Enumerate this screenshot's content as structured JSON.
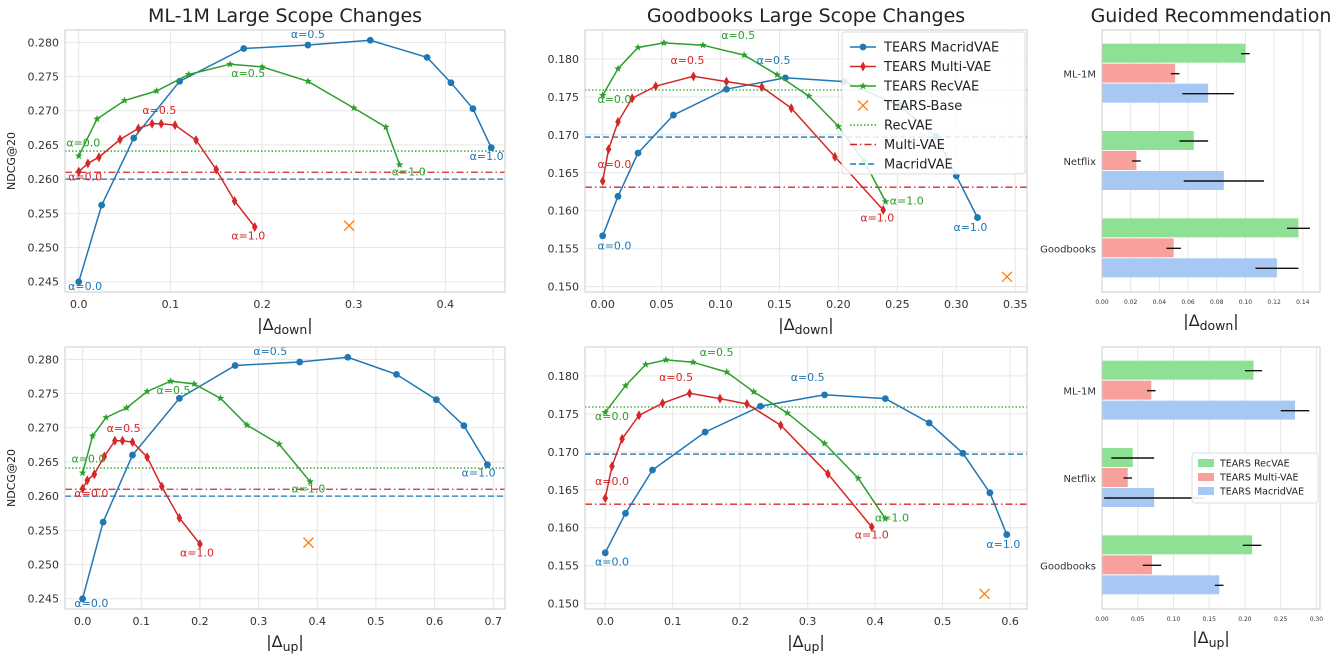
{
  "chart_data": [
    {
      "id": "ml1m_down",
      "type": "line",
      "title": "ML-1M Large Scope Changes",
      "xlabel": "|Δdown|",
      "ylabel": "NDCG@20",
      "xlim": [
        -0.015,
        0.465
      ],
      "ylim": [
        0.2435,
        0.2818
      ],
      "xticks": [
        "0.0",
        "0.1",
        "0.2",
        "0.3",
        "0.4"
      ],
      "yticks": [
        "0.245",
        "0.250",
        "0.255",
        "0.260",
        "0.265",
        "0.270",
        "0.275",
        "0.280"
      ],
      "grid": true,
      "series": [
        {
          "name": "TEARS MacridVAE",
          "color": "#1f77b4",
          "marker": "circle",
          "x": [
            0.0,
            0.025,
            0.06,
            0.11,
            0.18,
            0.25,
            0.318,
            0.38,
            0.406,
            0.43,
            0.45
          ],
          "y": [
            0.245,
            0.2562,
            0.266,
            0.2743,
            0.2791,
            0.2796,
            0.2803,
            0.2778,
            0.2741,
            0.2703,
            0.2646
          ]
        },
        {
          "name": "TEARS Multi-VAE",
          "color": "#d62728",
          "marker": "diamond",
          "x": [
            0.0,
            0.01,
            0.022,
            0.045,
            0.065,
            0.08,
            0.09,
            0.105,
            0.128,
            0.15,
            0.17,
            0.192
          ],
          "y": [
            0.2611,
            0.2623,
            0.2632,
            0.2658,
            0.2674,
            0.2681,
            0.2681,
            0.2679,
            0.2657,
            0.2614,
            0.2568,
            0.253
          ]
        },
        {
          "name": "TEARS RecVAE",
          "color": "#2ca02c",
          "marker": "star",
          "x": [
            0.0,
            0.02,
            0.05,
            0.085,
            0.12,
            0.165,
            0.2,
            0.25,
            0.3,
            0.335,
            0.35
          ],
          "y": [
            0.2634,
            0.2688,
            0.2715,
            0.2729,
            0.2753,
            0.2768,
            0.2764,
            0.2743,
            0.2704,
            0.2676,
            0.2621
          ]
        },
        {
          "name": "TEARS-Base",
          "color": "#ff7f0e",
          "marker": "x",
          "x": [
            0.295
          ],
          "y": [
            0.2532
          ]
        }
      ],
      "hlines": [
        {
          "name": "RecVAE",
          "y": 0.2641,
          "color": "#2ca02c",
          "style": "dotted"
        },
        {
          "name": "Multi-VAE",
          "y": 0.261,
          "color": "#d62728",
          "style": "dashdot"
        },
        {
          "name": "MacridVAE",
          "y": 0.26,
          "color": "#1f77b4",
          "style": "dashed"
        }
      ],
      "annotations": [
        {
          "text": "α=0.5",
          "x": 0.25,
          "y": 0.2806,
          "color": "#1f77b4"
        },
        {
          "text": "α=1.0",
          "x": 0.445,
          "y": 0.2628,
          "color": "#1f77b4"
        },
        {
          "text": "α=0.0",
          "x": 0.007,
          "y": 0.2438,
          "color": "#1f77b4"
        },
        {
          "text": "α=0.5",
          "x": 0.088,
          "y": 0.2695,
          "color": "#d62728"
        },
        {
          "text": "α=0.0",
          "x": 0.007,
          "y": 0.2598,
          "color": "#d62728"
        },
        {
          "text": "α=1.0",
          "x": 0.185,
          "y": 0.2512,
          "color": "#d62728"
        },
        {
          "text": "α=0.0",
          "x": 0.005,
          "y": 0.2648,
          "color": "#2ca02c"
        },
        {
          "text": "α=0.5",
          "x": 0.185,
          "y": 0.2749,
          "color": "#2ca02c"
        },
        {
          "text": "α=1.0",
          "x": 0.36,
          "y": 0.2605,
          "color": "#2ca02c"
        }
      ]
    },
    {
      "id": "goodbooks_down",
      "type": "line",
      "title": "Goodbooks Large Scope Changes",
      "xlabel": "|Δdown|",
      "ylabel": "",
      "xlim": [
        -0.015,
        0.36
      ],
      "ylim": [
        0.1493,
        0.1838
      ],
      "xticks": [
        "0.00",
        "0.05",
        "0.10",
        "0.15",
        "0.20",
        "0.25",
        "0.30",
        "0.35"
      ],
      "yticks": [
        "0.150",
        "0.155",
        "0.160",
        "0.165",
        "0.170",
        "0.175",
        "0.180"
      ],
      "grid": true,
      "series": [
        {
          "name": "TEARS MacridVAE",
          "color": "#1f77b4",
          "marker": "circle",
          "x": [
            0.0,
            0.013,
            0.03,
            0.06,
            0.105,
            0.155,
            0.205,
            0.252,
            0.283,
            0.3,
            0.318
          ],
          "y": [
            0.1567,
            0.1619,
            0.1676,
            0.1726,
            0.176,
            0.1775,
            0.177,
            0.1738,
            0.1698,
            0.1646,
            0.1591
          ]
        },
        {
          "name": "TEARS Multi-VAE",
          "color": "#d62728",
          "marker": "diamond",
          "x": [
            0.0,
            0.005,
            0.013,
            0.025,
            0.045,
            0.077,
            0.105,
            0.135,
            0.16,
            0.197,
            0.238
          ],
          "y": [
            0.1639,
            0.1681,
            0.1717,
            0.1748,
            0.1764,
            0.1777,
            0.177,
            0.1763,
            0.1735,
            0.1671,
            0.1601
          ]
        },
        {
          "name": "TEARS RecVAE",
          "color": "#2ca02c",
          "marker": "star",
          "x": [
            0.0,
            0.013,
            0.03,
            0.052,
            0.085,
            0.12,
            0.148,
            0.175,
            0.2,
            0.222,
            0.24
          ],
          "y": [
            0.1752,
            0.1787,
            0.1815,
            0.1821,
            0.1818,
            0.1805,
            0.1779,
            0.1751,
            0.1711,
            0.1665,
            0.1612
          ]
        },
        {
          "name": "TEARS-Base",
          "color": "#ff7f0e",
          "marker": "x",
          "x": [
            0.343
          ],
          "y": [
            0.1513
          ]
        }
      ],
      "hlines": [
        {
          "name": "RecVAE",
          "y": 0.1759,
          "color": "#2ca02c",
          "style": "dotted"
        },
        {
          "name": "Multi-VAE",
          "y": 0.1631,
          "color": "#d62728",
          "style": "dashdot"
        },
        {
          "name": "MacridVAE",
          "y": 0.1697,
          "color": "#1f77b4",
          "style": "dashed"
        }
      ],
      "annotations": [
        {
          "text": "α=0.5",
          "x": 0.145,
          "y": 0.1793,
          "color": "#1f77b4"
        },
        {
          "text": "α=1.0",
          "x": 0.312,
          "y": 0.1573,
          "color": "#1f77b4"
        },
        {
          "text": "α=0.0",
          "x": 0.01,
          "y": 0.1549,
          "color": "#1f77b4"
        },
        {
          "text": "α=0.5",
          "x": 0.072,
          "y": 0.1793,
          "color": "#d62728"
        },
        {
          "text": "α=0.0",
          "x": 0.01,
          "y": 0.1656,
          "color": "#d62728"
        },
        {
          "text": "α=1.0",
          "x": 0.233,
          "y": 0.1586,
          "color": "#d62728"
        },
        {
          "text": "α=0.0",
          "x": 0.01,
          "y": 0.1742,
          "color": "#2ca02c"
        },
        {
          "text": "α=0.5",
          "x": 0.115,
          "y": 0.1826,
          "color": "#2ca02c"
        },
        {
          "text": "α=1.0",
          "x": 0.258,
          "y": 0.1608,
          "color": "#2ca02c"
        }
      ],
      "legend": {
        "placement": "top-right",
        "entries": [
          "TEARS MacridVAE",
          "TEARS Multi-VAE",
          "TEARS RecVAE",
          "TEARS-Base",
          "RecVAE",
          "Multi-VAE",
          "MacridVAE"
        ]
      }
    },
    {
      "id": "guided_down",
      "type": "bar",
      "orientation": "horizontal",
      "title": "Guided Recommendation",
      "xlabel": "|Δdown|",
      "categories": [
        "ML-1M",
        "Netflix",
        "Goodbooks"
      ],
      "xlim": [
        0,
        0.152
      ],
      "xticks": [
        "0.00",
        "0.02",
        "0.04",
        "0.06",
        "0.08",
        "0.10",
        "0.12",
        "0.14"
      ],
      "grid": true,
      "series": [
        {
          "name": "TEARS RecVAE",
          "color": "#8ee094",
          "values": [
            0.1,
            0.064,
            0.137
          ],
          "errors": [
            0.003,
            0.01,
            0.008
          ]
        },
        {
          "name": "TEARS Multi-VAE",
          "color": "#f8a09c",
          "values": [
            0.051,
            0.024,
            0.05
          ],
          "errors": [
            0.003,
            0.003,
            0.005
          ]
        },
        {
          "name": "TEARS MacridVAE",
          "color": "#a6c8f2",
          "values": [
            0.074,
            0.085,
            0.122
          ],
          "errors": [
            0.018,
            0.028,
            0.015
          ]
        }
      ]
    },
    {
      "id": "ml1m_up",
      "type": "line",
      "title": "",
      "xlabel": "|Δup|",
      "ylabel": "NDCG@20",
      "xlim": [
        -0.03,
        0.72
      ],
      "ylim": [
        0.2435,
        0.2818
      ],
      "xticks": [
        "0.0",
        "0.1",
        "0.2",
        "0.3",
        "0.4",
        "0.5",
        "0.6",
        "0.7"
      ],
      "yticks": [
        "0.245",
        "0.250",
        "0.255",
        "0.260",
        "0.265",
        "0.270",
        "0.275",
        "0.280"
      ],
      "grid": true,
      "series": [
        {
          "name": "TEARS MacridVAE",
          "color": "#1f77b4",
          "marker": "circle",
          "x": [
            0.0,
            0.035,
            0.085,
            0.165,
            0.26,
            0.37,
            0.452,
            0.535,
            0.603,
            0.65,
            0.69
          ],
          "y": [
            0.245,
            0.2562,
            0.266,
            0.2743,
            0.2791,
            0.2796,
            0.2803,
            0.2778,
            0.2741,
            0.2703,
            0.2646
          ]
        },
        {
          "name": "TEARS Multi-VAE",
          "color": "#d62728",
          "marker": "diamond",
          "x": [
            0.0,
            0.008,
            0.02,
            0.037,
            0.055,
            0.068,
            0.085,
            0.11,
            0.135,
            0.165,
            0.2
          ],
          "y": [
            0.2611,
            0.2623,
            0.2632,
            0.2658,
            0.2681,
            0.2681,
            0.2679,
            0.2657,
            0.2614,
            0.2568,
            0.253
          ]
        },
        {
          "name": "TEARS RecVAE",
          "color": "#2ca02c",
          "marker": "star",
          "x": [
            0.0,
            0.017,
            0.04,
            0.075,
            0.11,
            0.15,
            0.19,
            0.235,
            0.28,
            0.335,
            0.388
          ],
          "y": [
            0.2634,
            0.2688,
            0.2715,
            0.2729,
            0.2753,
            0.2768,
            0.2764,
            0.2743,
            0.2704,
            0.2676,
            0.2621
          ]
        },
        {
          "name": "TEARS-Base",
          "color": "#ff7f0e",
          "marker": "x",
          "x": [
            0.385
          ],
          "y": [
            0.2532
          ]
        }
      ],
      "hlines": [
        {
          "name": "RecVAE",
          "y": 0.2641,
          "color": "#2ca02c",
          "style": "dotted"
        },
        {
          "name": "Multi-VAE",
          "y": 0.261,
          "color": "#d62728",
          "style": "dashdot"
        },
        {
          "name": "MacridVAE",
          "y": 0.26,
          "color": "#1f77b4",
          "style": "dashed"
        }
      ],
      "annotations": [
        {
          "text": "α=0.5",
          "x": 0.32,
          "y": 0.2806,
          "color": "#1f77b4"
        },
        {
          "text": "α=1.0",
          "x": 0.675,
          "y": 0.2629,
          "color": "#1f77b4"
        },
        {
          "text": "α=0.0",
          "x": 0.015,
          "y": 0.2438,
          "color": "#1f77b4"
        },
        {
          "text": "α=0.5",
          "x": 0.07,
          "y": 0.2694,
          "color": "#d62728"
        },
        {
          "text": "α=0.0",
          "x": 0.015,
          "y": 0.2599,
          "color": "#d62728"
        },
        {
          "text": "α=1.0",
          "x": 0.195,
          "y": 0.2512,
          "color": "#d62728"
        },
        {
          "text": "α=0.0",
          "x": 0.01,
          "y": 0.2649,
          "color": "#2ca02c"
        },
        {
          "text": "α=0.5",
          "x": 0.155,
          "y": 0.2749,
          "color": "#2ca02c"
        },
        {
          "text": "α=1.0",
          "x": 0.385,
          "y": 0.2605,
          "color": "#2ca02c"
        }
      ]
    },
    {
      "id": "goodbooks_up",
      "type": "line",
      "title": "",
      "xlabel": "|Δup|",
      "ylabel": "",
      "xlim": [
        -0.03,
        0.625
      ],
      "ylim": [
        0.1493,
        0.1838
      ],
      "xticks": [
        "0.0",
        "0.1",
        "0.2",
        "0.3",
        "0.4",
        "0.5",
        "0.6"
      ],
      "yticks": [
        "0.150",
        "0.155",
        "0.160",
        "0.165",
        "0.170",
        "0.175",
        "0.180"
      ],
      "grid": true,
      "series": [
        {
          "name": "TEARS MacridVAE",
          "color": "#1f77b4",
          "marker": "circle",
          "x": [
            0.0,
            0.03,
            0.07,
            0.148,
            0.23,
            0.325,
            0.415,
            0.48,
            0.53,
            0.57,
            0.595
          ],
          "y": [
            0.1567,
            0.1619,
            0.1676,
            0.1726,
            0.176,
            0.1775,
            0.177,
            0.1738,
            0.1698,
            0.1646,
            0.1591
          ]
        },
        {
          "name": "TEARS Multi-VAE",
          "color": "#d62728",
          "marker": "diamond",
          "x": [
            0.0,
            0.01,
            0.025,
            0.05,
            0.085,
            0.125,
            0.17,
            0.21,
            0.26,
            0.33,
            0.395
          ],
          "y": [
            0.1639,
            0.1681,
            0.1717,
            0.1748,
            0.1764,
            0.1777,
            0.177,
            0.1763,
            0.1735,
            0.1671,
            0.1601
          ]
        },
        {
          "name": "TEARS RecVAE",
          "color": "#2ca02c",
          "marker": "star",
          "x": [
            0.0,
            0.03,
            0.06,
            0.09,
            0.13,
            0.18,
            0.22,
            0.27,
            0.325,
            0.375,
            0.415
          ],
          "y": [
            0.1752,
            0.1787,
            0.1815,
            0.1821,
            0.1818,
            0.1805,
            0.1779,
            0.1751,
            0.1711,
            0.1665,
            0.1612
          ]
        },
        {
          "name": "TEARS-Base",
          "color": "#ff7f0e",
          "marker": "x",
          "x": [
            0.562
          ],
          "y": [
            0.1513
          ]
        }
      ],
      "hlines": [
        {
          "name": "RecVAE",
          "y": 0.1759,
          "color": "#2ca02c",
          "style": "dotted"
        },
        {
          "name": "Multi-VAE",
          "y": 0.1631,
          "color": "#d62728",
          "style": "dashdot"
        },
        {
          "name": "MacridVAE",
          "y": 0.1697,
          "color": "#1f77b4",
          "style": "dashed"
        }
      ],
      "annotations": [
        {
          "text": "α=0.5",
          "x": 0.3,
          "y": 0.1793,
          "color": "#1f77b4"
        },
        {
          "text": "α=1.0",
          "x": 0.59,
          "y": 0.1573,
          "color": "#1f77b4"
        },
        {
          "text": "α=0.0",
          "x": 0.01,
          "y": 0.155,
          "color": "#1f77b4"
        },
        {
          "text": "α=0.5",
          "x": 0.105,
          "y": 0.1793,
          "color": "#d62728"
        },
        {
          "text": "α=0.0",
          "x": 0.01,
          "y": 0.1656,
          "color": "#d62728"
        },
        {
          "text": "α=1.0",
          "x": 0.395,
          "y": 0.1586,
          "color": "#d62728"
        },
        {
          "text": "α=0.0",
          "x": 0.01,
          "y": 0.1742,
          "color": "#2ca02c"
        },
        {
          "text": "α=0.5",
          "x": 0.165,
          "y": 0.1826,
          "color": "#2ca02c"
        },
        {
          "text": "α=1.0",
          "x": 0.425,
          "y": 0.1608,
          "color": "#2ca02c"
        }
      ]
    },
    {
      "id": "guided_up",
      "type": "bar",
      "orientation": "horizontal",
      "title": "",
      "xlabel": "|Δup|",
      "categories": [
        "ML-1M",
        "Netflix",
        "Goodbooks"
      ],
      "xlim": [
        0,
        0.305
      ],
      "xticks": [
        "0.00",
        "0.05",
        "0.10",
        "0.15",
        "0.20",
        "0.25",
        "0.30"
      ],
      "grid": true,
      "series": [
        {
          "name": "TEARS RecVAE",
          "color": "#8ee094",
          "values": [
            0.212,
            0.043,
            0.21
          ],
          "errors": [
            0.012,
            0.03,
            0.013
          ]
        },
        {
          "name": "TEARS Multi-VAE",
          "color": "#f8a09c",
          "values": [
            0.069,
            0.036,
            0.07
          ],
          "errors": [
            0.006,
            0.006,
            0.013
          ]
        },
        {
          "name": "TEARS MacridVAE",
          "color": "#a6c8f2",
          "values": [
            0.27,
            0.073,
            0.164
          ],
          "errors": [
            0.02,
            0.07,
            0.006
          ]
        }
      ],
      "legend": {
        "placement": "center-right",
        "entries": [
          "TEARS RecVAE",
          "TEARS Multi-VAE",
          "TEARS MacridVAE"
        ]
      }
    }
  ]
}
